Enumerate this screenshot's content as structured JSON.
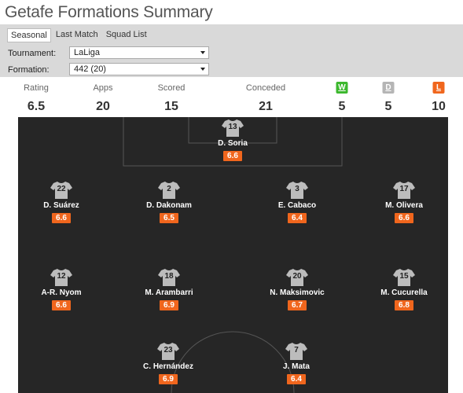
{
  "page_title": "Getafe Formations Summary",
  "tabs": [
    {
      "label": "Seasonal",
      "active": true
    },
    {
      "label": "Last Match",
      "active": false
    },
    {
      "label": "Squad List",
      "active": false
    }
  ],
  "filters": {
    "tournament_label": "Tournament:",
    "tournament_value": "LaLiga",
    "formation_label": "Formation:",
    "formation_value": "442 (20)"
  },
  "stats": {
    "rating_label": "Rating",
    "rating_value": "6.5",
    "apps_label": "Apps",
    "apps_value": "20",
    "scored_label": "Scored",
    "scored_value": "15",
    "conceded_label": "Conceded",
    "conceded_value": "21",
    "wins_badge": "W",
    "wins_value": "5",
    "draws_badge": "D",
    "draws_value": "5",
    "losses_badge": "L",
    "losses_value": "10"
  },
  "colors": {
    "win": "#3cb82e",
    "draw": "#b5b5b5",
    "loss": "#f0661d",
    "pitch": "#262626",
    "rating_badge": "#f0661d"
  },
  "players": [
    {
      "number": "13",
      "name": "D. Soria",
      "rating": "6.6"
    },
    {
      "number": "22",
      "name": "D. Suárez",
      "rating": "6.6"
    },
    {
      "number": "2",
      "name": "D. Dakonam",
      "rating": "6.5"
    },
    {
      "number": "3",
      "name": "E. Cabaco",
      "rating": "6.4"
    },
    {
      "number": "17",
      "name": "M. Olivera",
      "rating": "6.6"
    },
    {
      "number": "12",
      "name": "A-R. Nyom",
      "rating": "6.6"
    },
    {
      "number": "18",
      "name": "M. Arambarri",
      "rating": "6.9"
    },
    {
      "number": "20",
      "name": "N. Maksimovic",
      "rating": "6.7"
    },
    {
      "number": "15",
      "name": "M. Cucurella",
      "rating": "6.8"
    },
    {
      "number": "23",
      "name": "C. Hernández",
      "rating": "6.9"
    },
    {
      "number": "7",
      "name": "J. Mata",
      "rating": "6.4"
    }
  ]
}
